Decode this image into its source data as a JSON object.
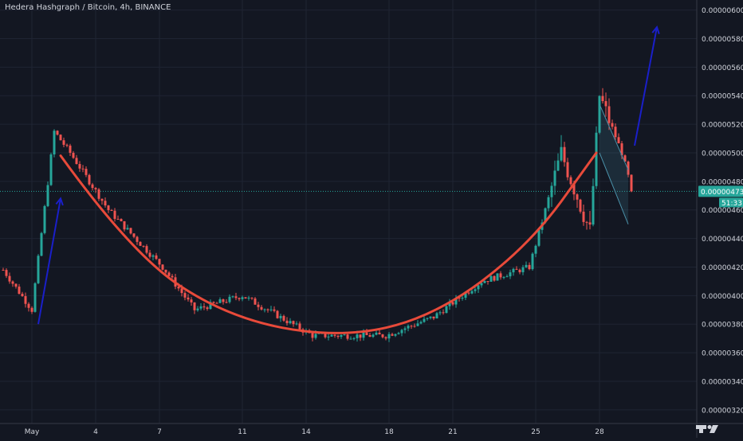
{
  "header": {
    "symbol_title": "Hedera Hashgraph / Bitcoin, 4h, BINANCE"
  },
  "colors": {
    "background": "#131722",
    "grid": "#1f2433",
    "up": "#26a69a",
    "down": "#ef5350",
    "curve": "#e84a3a",
    "arrow": "#1a1fc9",
    "channel": "#4a90a8",
    "axis_text": "#d1d4dc",
    "price_line": "#26a69a"
  },
  "price_badge": {
    "value": "0.00000473",
    "countdown": "51:33"
  },
  "chart_data": {
    "type": "candlestick",
    "title": "Hedera Hashgraph / Bitcoin, 4h, BINANCE",
    "y_range": [
      3.16e-06,
      6.02e-06
    ],
    "y_ticks": [
      "0.00000600",
      "0.00000580",
      "0.00000560",
      "0.00000540",
      "0.00000520",
      "0.00000500",
      "0.00000480",
      "0.00000460",
      "0.00000440",
      "0.00000420",
      "0.00000400",
      "0.00000380",
      "0.00000360",
      "0.00000340",
      "0.00000320"
    ],
    "x_range_bars": [
      0,
      220
    ],
    "x_ticks": [
      {
        "label": "May",
        "bar": 9
      },
      {
        "label": "4",
        "bar": 29
      },
      {
        "label": "7",
        "bar": 49
      },
      {
        "label": "11",
        "bar": 75
      },
      {
        "label": "14",
        "bar": 95
      },
      {
        "label": "18",
        "bar": 121
      },
      {
        "label": "21",
        "bar": 141
      },
      {
        "label": "25",
        "bar": 167
      },
      {
        "label": "28",
        "bar": 187
      }
    ],
    "current_price": 4.73e-06,
    "key_points": [
      {
        "bar": 0,
        "price": 4.18e-06
      },
      {
        "bar": 9,
        "price": 3.9e-06
      },
      {
        "bar": 16,
        "price": 5.15e-06
      },
      {
        "bar": 21,
        "price": 5e-06
      },
      {
        "bar": 33,
        "price": 4.6e-06
      },
      {
        "bar": 50,
        "price": 4.2e-06
      },
      {
        "bar": 60,
        "price": 3.9e-06
      },
      {
        "bar": 75,
        "price": 4e-06
      },
      {
        "bar": 97,
        "price": 3.72e-06
      },
      {
        "bar": 120,
        "price": 3.72e-06
      },
      {
        "bar": 135,
        "price": 3.85e-06
      },
      {
        "bar": 150,
        "price": 4.1e-06
      },
      {
        "bar": 165,
        "price": 4.2e-06
      },
      {
        "bar": 175,
        "price": 5e-06
      },
      {
        "bar": 184,
        "price": 4.45e-06
      },
      {
        "bar": 187,
        "price": 5.4e-06
      },
      {
        "bar": 194,
        "price": 5e-06
      },
      {
        "bar": 197,
        "price": 4.75e-06
      }
    ],
    "rounded_bottom_curve": [
      {
        "bar": 18,
        "price": 4.98e-06
      },
      {
        "bar": 40,
        "price": 4.3e-06
      },
      {
        "bar": 70,
        "price": 3.85e-06
      },
      {
        "bar": 105,
        "price": 3.7e-06
      },
      {
        "bar": 135,
        "price": 3.85e-06
      },
      {
        "bar": 165,
        "price": 4.35e-06
      },
      {
        "bar": 186,
        "price": 5e-06
      }
    ],
    "channel": {
      "upper": [
        {
          "bar": 187,
          "price": 5.34e-06
        },
        {
          "bar": 196,
          "price": 4.88e-06
        }
      ],
      "lower": [
        {
          "bar": 187,
          "price": 5e-06
        },
        {
          "bar": 196,
          "price": 4.5e-06
        }
      ]
    },
    "arrows": [
      {
        "from": {
          "bar": 11,
          "price": 3.8e-06
        },
        "to": {
          "bar": 18,
          "price": 4.68e-06
        }
      },
      {
        "from": {
          "bar": 198,
          "price": 5.05e-06
        },
        "to": {
          "bar": 205,
          "price": 5.88e-06
        }
      }
    ]
  }
}
